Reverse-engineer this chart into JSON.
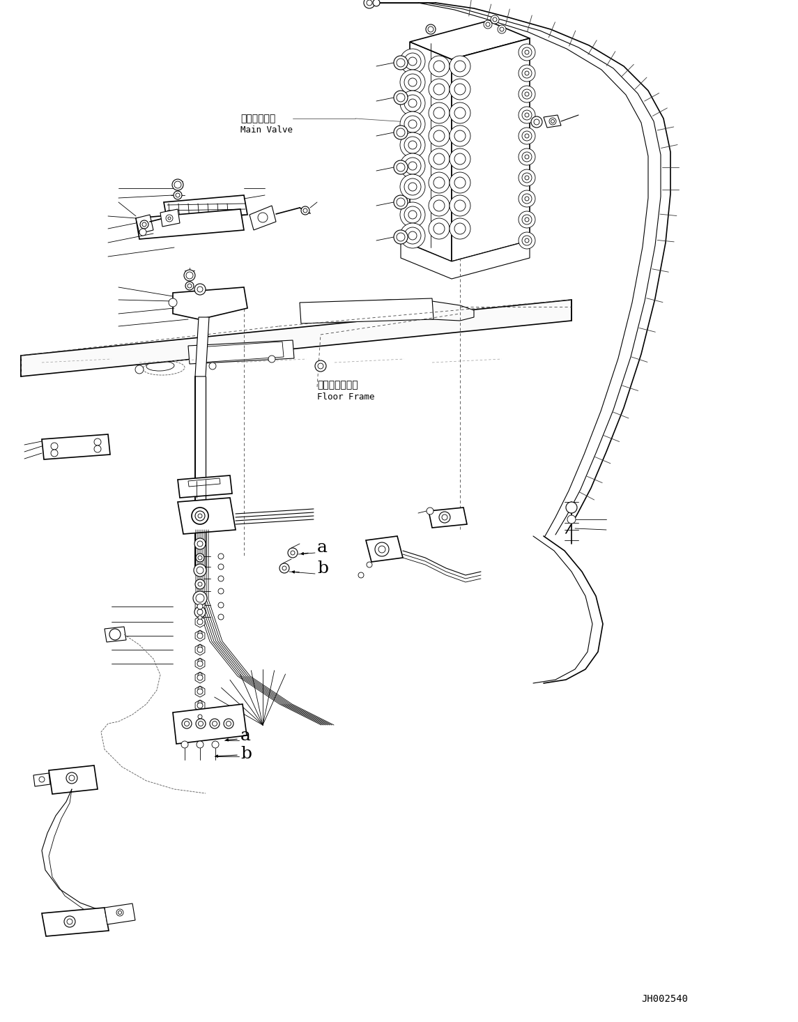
{
  "background_color": "#ffffff",
  "figure_width": 11.45,
  "figure_height": 14.66,
  "dpi": 100,
  "watermark": "JH002540",
  "label_main_valve_jp": "メインバルブ",
  "label_main_valve_en": "Main Valve",
  "label_floor_frame_jp": "フロアフレーム",
  "label_floor_frame_en": "Floor Frame",
  "label_a1": "a",
  "label_b1": "b",
  "label_a2": "a",
  "label_b2": "b",
  "line_color": "#000000",
  "text_color": "#000000"
}
